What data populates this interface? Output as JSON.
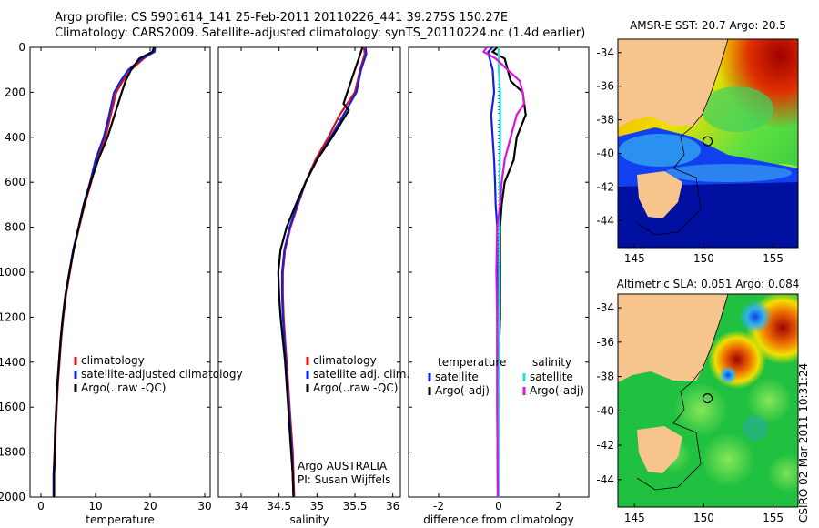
{
  "header": {
    "title_line1": "Argo profile: CS 5901614_141 25-Feb-2011 20110226_441 39.275S 150.27E",
    "title_line2": "Climatology: CARS2009. Satellite-adjusted climatology: synTS_20110224.nc (1.4d earlier)",
    "stamp": "CSIRO 02-Mar-2011 10:31:24"
  },
  "colors": {
    "climatology": "#e01010",
    "satellite": "#1020e0",
    "argo": "#000000",
    "sal_satellite": "#20e0e0",
    "sal_argo": "#e010e0"
  },
  "chart_data": [
    {
      "id": "temperature",
      "type": "line",
      "xlabel": "temperature",
      "xlim": [
        -2,
        31
      ],
      "ylim": [
        2000,
        0
      ],
      "xticks": [
        0,
        10,
        20,
        30
      ],
      "yticks": [
        0,
        200,
        400,
        600,
        800,
        1000,
        1200,
        1400,
        1600,
        1800,
        2000
      ],
      "legend": [
        "climatology",
        "satellite-adjusted climatology",
        "Argo(..raw -QC)"
      ],
      "series": [
        {
          "name": "climatology",
          "color": "climatology",
          "points": [
            [
              20.8,
              0
            ],
            [
              20.6,
              20
            ],
            [
              18.8,
              50
            ],
            [
              16.5,
              100
            ],
            [
              15,
              150
            ],
            [
              13.8,
              200
            ],
            [
              12.8,
              300
            ],
            [
              11.8,
              400
            ],
            [
              10.2,
              500
            ],
            [
              9.2,
              600
            ],
            [
              8,
              700
            ],
            [
              7,
              800
            ],
            [
              6,
              900
            ],
            [
              5.3,
              1000
            ],
            [
              4.6,
              1100
            ],
            [
              4.1,
              1200
            ],
            [
              3.7,
              1300
            ],
            [
              3.4,
              1400
            ],
            [
              3.1,
              1500
            ],
            [
              2.9,
              1600
            ],
            [
              2.7,
              1700
            ],
            [
              2.6,
              1800
            ],
            [
              2.4,
              1900
            ],
            [
              2.4,
              2000
            ]
          ]
        },
        {
          "name": "satellite-adjusted climatology",
          "color": "satellite",
          "points": [
            [
              20.9,
              0
            ],
            [
              20.8,
              20
            ],
            [
              18.5,
              50
            ],
            [
              16,
              100
            ],
            [
              14.6,
              150
            ],
            [
              13.4,
              200
            ],
            [
              12.5,
              300
            ],
            [
              11.5,
              400
            ],
            [
              10,
              500
            ],
            [
              9,
              600
            ],
            [
              7.8,
              700
            ],
            [
              6.9,
              800
            ],
            [
              5.9,
              900
            ],
            [
              5.2,
              1000
            ],
            [
              4.5,
              1100
            ],
            [
              4,
              1200
            ],
            [
              3.6,
              1300
            ],
            [
              3.3,
              1400
            ],
            [
              3,
              1500
            ],
            [
              2.8,
              1600
            ],
            [
              2.6,
              1700
            ],
            [
              2.5,
              1800
            ],
            [
              2.3,
              1900
            ],
            [
              2.3,
              2000
            ]
          ]
        },
        {
          "name": "Argo(..raw -QC)",
          "color": "argo",
          "points": [
            [
              20.7,
              0
            ],
            [
              20.4,
              20
            ],
            [
              18,
              50
            ],
            [
              16.5,
              100
            ],
            [
              15.5,
              150
            ],
            [
              14.8,
              200
            ],
            [
              13.5,
              300
            ],
            [
              12.2,
              400
            ],
            [
              10.5,
              500
            ],
            [
              9.1,
              600
            ],
            [
              7.9,
              700
            ],
            [
              6.9,
              800
            ],
            [
              6,
              900
            ],
            [
              5.2,
              1000
            ],
            [
              4.5,
              1100
            ],
            [
              4,
              1200
            ],
            [
              3.6,
              1300
            ],
            [
              3.3,
              1400
            ],
            [
              3,
              1500
            ],
            [
              2.8,
              1600
            ],
            [
              2.6,
              1700
            ],
            [
              2.5,
              1800
            ],
            [
              2.4,
              1900
            ],
            [
              2.4,
              2000
            ]
          ]
        }
      ]
    },
    {
      "id": "salinity",
      "type": "line",
      "xlabel": "salinity",
      "xlim": [
        33.7,
        36.1
      ],
      "ylim": [
        2000,
        0
      ],
      "xticks": [
        34,
        34.5,
        35,
        35.5,
        36
      ],
      "yticks": [
        0,
        200,
        400,
        600,
        800,
        1000,
        1200,
        1400,
        1600,
        1800,
        2000
      ],
      "legend": [
        "climatology",
        "satellite adj. clim.",
        "Argo(..raw -QC)"
      ],
      "annotation": [
        "Argo AUSTRALIA",
        "PI: Susan Wijffels"
      ],
      "series": [
        {
          "name": "climatology",
          "color": "climatology",
          "points": [
            [
              35.62,
              0
            ],
            [
              35.63,
              30
            ],
            [
              35.57,
              100
            ],
            [
              35.5,
              200
            ],
            [
              35.3,
              300
            ],
            [
              35.15,
              400
            ],
            [
              34.98,
              500
            ],
            [
              34.85,
              600
            ],
            [
              34.75,
              700
            ],
            [
              34.65,
              800
            ],
            [
              34.58,
              900
            ],
            [
              34.55,
              1000
            ],
            [
              34.55,
              1100
            ],
            [
              34.56,
              1200
            ],
            [
              34.58,
              1300
            ],
            [
              34.6,
              1400
            ],
            [
              34.62,
              1500
            ],
            [
              34.64,
              1600
            ],
            [
              34.66,
              1700
            ],
            [
              34.68,
              1800
            ],
            [
              34.69,
              1900
            ],
            [
              34.7,
              2000
            ]
          ]
        },
        {
          "name": "satellite adj. clim.",
          "color": "satellite",
          "points": [
            [
              35.64,
              0
            ],
            [
              35.65,
              30
            ],
            [
              35.58,
              100
            ],
            [
              35.52,
              200
            ],
            [
              35.35,
              300
            ],
            [
              35.18,
              400
            ],
            [
              35.0,
              500
            ],
            [
              34.85,
              600
            ],
            [
              34.74,
              700
            ],
            [
              34.64,
              800
            ],
            [
              34.57,
              900
            ],
            [
              34.54,
              1000
            ],
            [
              34.54,
              1100
            ],
            [
              34.55,
              1200
            ],
            [
              34.57,
              1300
            ],
            [
              34.59,
              1400
            ],
            [
              34.61,
              1500
            ],
            [
              34.63,
              1600
            ],
            [
              34.65,
              1700
            ],
            [
              34.67,
              1800
            ],
            [
              34.68,
              1900
            ],
            [
              34.69,
              2000
            ]
          ]
        },
        {
          "name": "Argo(..raw -QC)",
          "color": "argo",
          "points": [
            [
              35.6,
              0
            ],
            [
              35.55,
              50
            ],
            [
              35.45,
              150
            ],
            [
              35.35,
              250
            ],
            [
              35.42,
              280
            ],
            [
              35.2,
              400
            ],
            [
              35.0,
              500
            ],
            [
              34.85,
              600
            ],
            [
              34.72,
              700
            ],
            [
              34.6,
              800
            ],
            [
              34.52,
              900
            ],
            [
              34.49,
              1000
            ],
            [
              34.5,
              1100
            ],
            [
              34.52,
              1200
            ],
            [
              34.55,
              1300
            ],
            [
              34.58,
              1400
            ],
            [
              34.6,
              1500
            ],
            [
              34.62,
              1600
            ],
            [
              34.64,
              1700
            ],
            [
              34.66,
              1800
            ],
            [
              34.68,
              1900
            ],
            [
              34.69,
              2000
            ]
          ]
        }
      ]
    },
    {
      "id": "difference",
      "type": "line",
      "xlabel": "difference from climatology",
      "xlim": [
        -3,
        3
      ],
      "ylim": [
        2000,
        0
      ],
      "xticks": [
        -2,
        0,
        2
      ],
      "yticks": [
        0,
        200,
        400,
        600,
        800,
        1000,
        1200,
        1400,
        1600,
        1800,
        2000
      ],
      "legend_left": {
        "title": "temperature",
        "items": [
          "satellite",
          "Argo(-adj)"
        ]
      },
      "legend_right": {
        "title": "salinity",
        "items": [
          "satellite",
          "Argo(-adj)"
        ]
      },
      "series": [
        {
          "name": "temperature satellite",
          "color": "satellite",
          "points": [
            [
              -0.2,
              0
            ],
            [
              -0.35,
              20
            ],
            [
              -0.3,
              50
            ],
            [
              -0.2,
              100
            ],
            [
              -0.15,
              200
            ],
            [
              -0.25,
              300
            ],
            [
              -0.2,
              400
            ],
            [
              -0.15,
              500
            ],
            [
              -0.12,
              600
            ],
            [
              -0.1,
              700
            ],
            [
              -0.05,
              800
            ],
            [
              -0.05,
              900
            ],
            [
              -0.05,
              1000
            ],
            [
              -0.05,
              1200
            ],
            [
              -0.05,
              1400
            ],
            [
              -0.05,
              1600
            ],
            [
              -0.04,
              1800
            ],
            [
              -0.03,
              2000
            ]
          ]
        },
        {
          "name": "temperature Argo(-adj)",
          "color": "argo",
          "points": [
            [
              -0.05,
              0
            ],
            [
              -0.2,
              20
            ],
            [
              0.2,
              50
            ],
            [
              0.3,
              100
            ],
            [
              0.4,
              150
            ],
            [
              0.8,
              200
            ],
            [
              0.9,
              300
            ],
            [
              0.6,
              400
            ],
            [
              0.5,
              500
            ],
            [
              0.2,
              600
            ],
            [
              0.1,
              700
            ],
            [
              0.05,
              800
            ],
            [
              0.05,
              1000
            ],
            [
              0.05,
              1200
            ],
            [
              0.0,
              1400
            ],
            [
              0.0,
              1600
            ],
            [
              0.0,
              1800
            ],
            [
              0.0,
              2000
            ]
          ]
        },
        {
          "name": "salinity satellite",
          "color": "sal_satellite",
          "points": [
            [
              0.0,
              0
            ],
            [
              0.0,
              50
            ],
            [
              0.0,
              100
            ],
            [
              0.05,
              200
            ],
            [
              0.05,
              300
            ],
            [
              0.05,
              400
            ],
            [
              0.03,
              600
            ],
            [
              0.03,
              800
            ],
            [
              0.02,
              1000
            ],
            [
              0.02,
              1200
            ],
            [
              0.02,
              1400
            ],
            [
              0.01,
              1600
            ],
            [
              0.01,
              1800
            ],
            [
              0.01,
              2000
            ]
          ]
        },
        {
          "name": "salinity Argo(-adj)",
          "color": "sal_argo",
          "points": [
            [
              -0.4,
              0
            ],
            [
              -0.5,
              20
            ],
            [
              -0.1,
              50
            ],
            [
              0.3,
              100
            ],
            [
              0.7,
              150
            ],
            [
              0.8,
              200
            ],
            [
              0.85,
              250
            ],
            [
              0.6,
              300
            ],
            [
              0.4,
              400
            ],
            [
              0.2,
              500
            ],
            [
              0.1,
              600
            ],
            [
              0.05,
              700
            ],
            [
              -0.05,
              800
            ],
            [
              -0.08,
              1000
            ],
            [
              -0.05,
              1200
            ],
            [
              -0.05,
              1400
            ],
            [
              -0.05,
              1600
            ],
            [
              -0.04,
              1800
            ],
            [
              -0.03,
              2000
            ]
          ]
        }
      ]
    }
  ],
  "maps": [
    {
      "id": "sst",
      "title": "AMSR-E SST: 20.7 Argo: 20.5",
      "xticks": [
        145,
        150,
        155
      ],
      "yticks": [
        -34,
        -36,
        -38,
        -40,
        -42,
        -44
      ],
      "xlim": [
        143.8,
        156.8
      ],
      "ylim": [
        -45.6,
        -33.2
      ],
      "argo_position": [
        150.27,
        -39.275
      ]
    },
    {
      "id": "sla",
      "title": "Altimetric SLA: 0.051 Argo: 0.084",
      "xticks": [
        145,
        150,
        155
      ],
      "yticks": [
        -34,
        -36,
        -38,
        -40,
        -42,
        -44
      ],
      "xlim": [
        143.8,
        156.8
      ],
      "ylim": [
        -45.6,
        -33.2
      ],
      "argo_position": [
        150.27,
        -39.275
      ]
    }
  ]
}
